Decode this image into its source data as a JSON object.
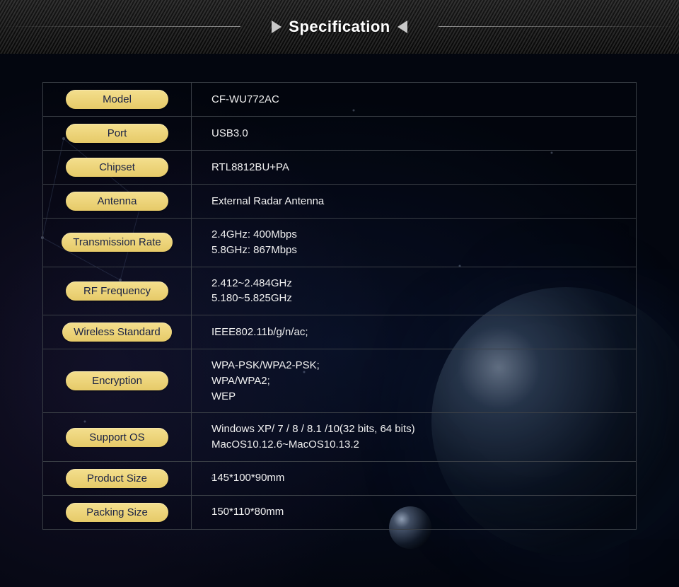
{
  "header": {
    "title": "Specification"
  },
  "style": {
    "pill_bg_top": "#f4df8e",
    "pill_bg_bottom": "#e6ca68",
    "pill_text": "#1a2244",
    "border_color": "#3a3f46",
    "value_text": "#f0f0f0",
    "background": "#03060f",
    "label_fontsize": 15,
    "value_fontsize": 15
  },
  "specs": [
    {
      "label": "Model",
      "value": "CF-WU772AC"
    },
    {
      "label": "Port",
      "value": "USB3.0"
    },
    {
      "label": "Chipset",
      "value": "RTL8812BU+PA"
    },
    {
      "label": "Antenna",
      "value": "External Radar Antenna"
    },
    {
      "label": "Transmission Rate",
      "value": "2.4GHz: 400Mbps\n5.8GHz: 867Mbps"
    },
    {
      "label": "RF Frequency",
      "value": "2.412~2.484GHz\n5.180~5.825GHz"
    },
    {
      "label": "Wireless Standard",
      "value": "IEEE802.11b/g/n/ac;"
    },
    {
      "label": "Encryption",
      "value": "WPA-PSK/WPA2-PSK;\nWPA/WPA2;\nWEP"
    },
    {
      "label": "Support OS",
      "value": "Windows XP/ 7 / 8 / 8.1 /10(32 bits, 64 bits)\nMacOS10.12.6~MacOS10.13.2"
    },
    {
      "label": "Product Size",
      "value": "145*100*90mm"
    },
    {
      "label": "Packing Size",
      "value": "150*110*80mm"
    }
  ]
}
